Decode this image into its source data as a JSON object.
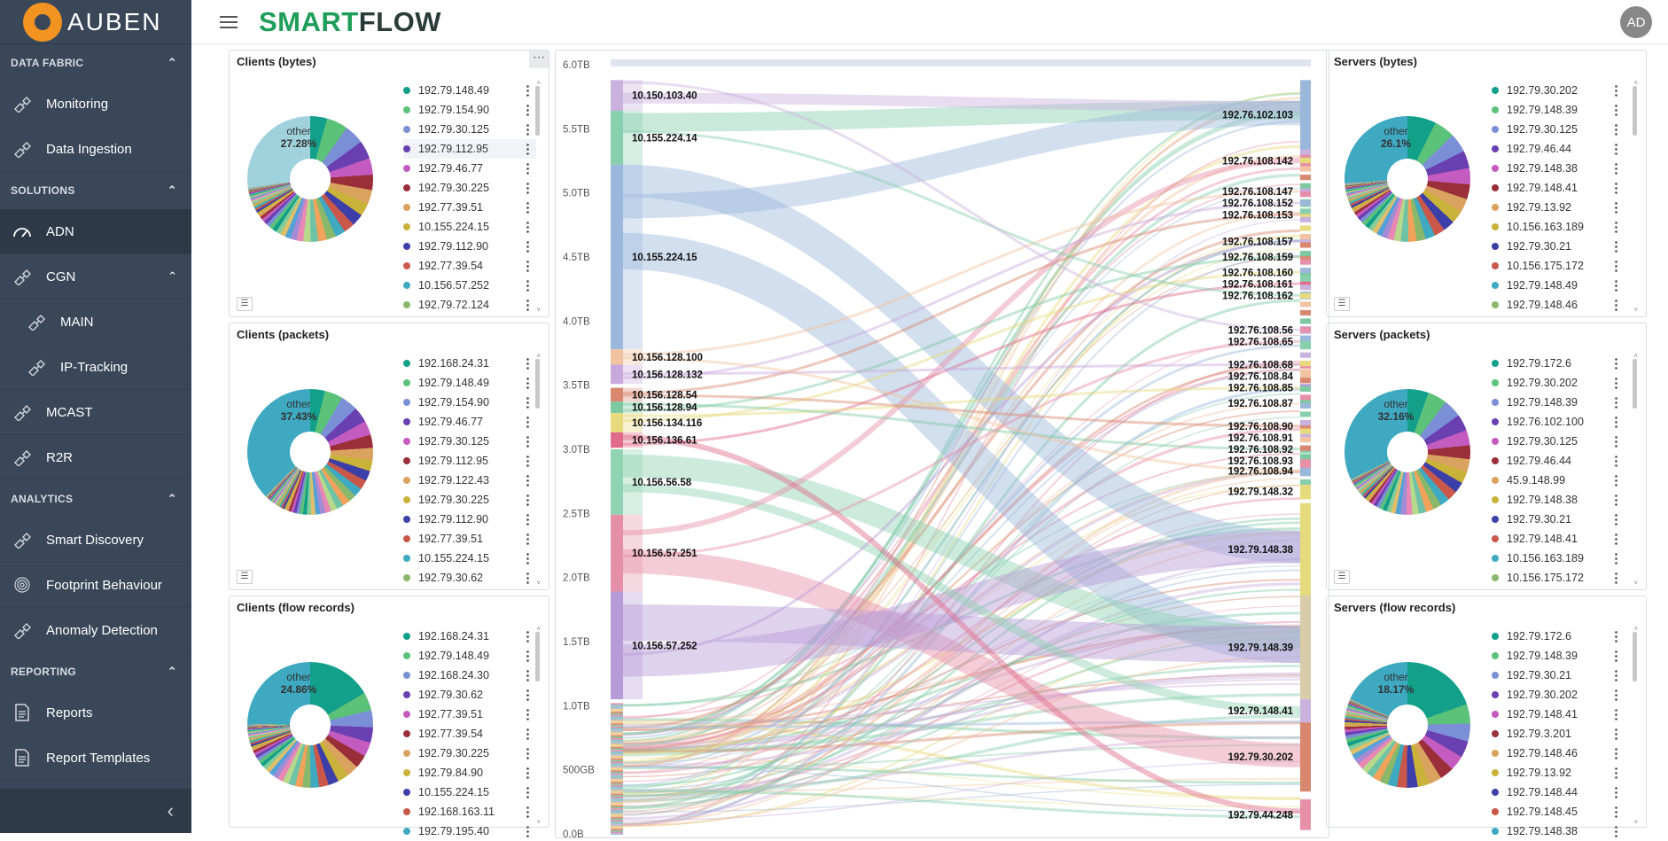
{
  "sidebar": {
    "logo": "AUBEN",
    "sections": [
      {
        "title": "DATA FABRIC",
        "items": [
          "Monitoring",
          "Data Ingestion"
        ]
      },
      {
        "title": "SOLUTIONS",
        "items": [
          "ADN",
          "CGN",
          "MAIN",
          "IP-Tracking",
          "MCAST",
          "R2R"
        ]
      },
      {
        "title": "ANALYTICS",
        "items": [
          "Smart Discovery",
          "Footprint Behaviour",
          "Anomaly Detection"
        ]
      },
      {
        "title": "REPORTING",
        "items": [
          "Reports",
          "Report Templates"
        ]
      }
    ]
  },
  "header": {
    "brand_a": "SMART",
    "brand_b": "FLOW",
    "avatar": "AD"
  },
  "panels": {
    "clients_bytes": {
      "title": "Clients (bytes)",
      "other_label": "other",
      "other_pct": "27.28%",
      "legend": [
        "192.79.148.49",
        "192.79.154.90",
        "192.79.30.125",
        "192.79.112.95",
        "192.79.46.77",
        "192.79.30.225",
        "192.77.39.51",
        "10.155.224.15",
        "192.79.112.90",
        "192.77.39.54",
        "10.156.57.252",
        "192.79.72.124"
      ]
    },
    "clients_packets": {
      "title": "Clients (packets)",
      "other_label": "other",
      "other_pct": "37.43%",
      "legend": [
        "192.168.24.31",
        "192.79.148.49",
        "192.79.154.90",
        "192.79.46.77",
        "192.79.30.125",
        "192.79.112.95",
        "192.79.122.43",
        "192.79.30.225",
        "192.79.112.90",
        "192.77.39.51",
        "10.155.224.15",
        "192.79.30.62"
      ]
    },
    "clients_flow": {
      "title": "Clients (flow records)",
      "other_label": "other",
      "other_pct": "24.86%",
      "legend": [
        "192.168.24.31",
        "192.79.148.49",
        "192.168.24.30",
        "192.79.30.62",
        "192.77.39.51",
        "192.77.39.54",
        "192.79.30.225",
        "192.79.84.90",
        "10.155.224.15",
        "192.168.163.11",
        "192.79.195.40"
      ]
    },
    "servers_bytes": {
      "title": "Servers (bytes)",
      "other_label": "other",
      "other_pct": "26.1%",
      "legend": [
        "192.79.30.202",
        "192.79.148.39",
        "192.79.30.125",
        "192.79.46.44",
        "192.79.148.38",
        "192.79.148.41",
        "192.79.13.92",
        "10.156.163.189",
        "192.79.30.21",
        "10.156.175.172",
        "192.79.148.49",
        "192.79.148.46"
      ]
    },
    "servers_packets": {
      "title": "Servers (packets)",
      "other_label": "other",
      "other_pct": "32.16%",
      "legend": [
        "192.79.172.6",
        "192.79.30.202",
        "192.79.148.39",
        "192.76.102.100",
        "192.79.30.125",
        "192.79.46.44",
        "45.9.148.99",
        "192.79.148.38",
        "192.79.30.21",
        "192.79.148.41",
        "10.156.163.189",
        "10.156.175.172"
      ]
    },
    "servers_flow": {
      "title": "Servers (flow records)",
      "other_label": "other",
      "other_pct": "18.17%",
      "legend": [
        "192.79.172.6",
        "192.79.148.39",
        "192.79.30.21",
        "192.79.30.202",
        "192.79.148.41",
        "192.79.3.201",
        "192.79.148.46",
        "192.79.13.92",
        "192.79.148.44",
        "192.79.148.45",
        "192.79.148.38"
      ]
    }
  },
  "legend_colors": [
    "#12a08a",
    "#5cc27a",
    "#7b8fd6",
    "#6a3fb0",
    "#c45cc0",
    "#9a2f3a",
    "#d9a25e",
    "#c9b23a",
    "#3d3fa8",
    "#c9584a",
    "#3ea9c0",
    "#8ab86a"
  ],
  "sankey": {
    "yticks": [
      "6.0TB",
      "5.5TB",
      "5.0TB",
      "4.5TB",
      "4.0TB",
      "3.5TB",
      "3.0TB",
      "2.5TB",
      "2.0TB",
      "1.5TB",
      "1.0TB",
      "500GB",
      "0.0B"
    ],
    "sources": [
      {
        "label": "10.150.103.40",
        "top": 0.02,
        "h": 0.04,
        "color": "#c9b2de"
      },
      {
        "label": "10.155.224.14",
        "top": 0.06,
        "h": 0.07,
        "color": "#88cfae"
      },
      {
        "label": "10.155.224.15",
        "top": 0.13,
        "h": 0.24,
        "color": "#9bb8dc"
      },
      {
        "label": "10.156.128.100",
        "top": 0.37,
        "h": 0.02,
        "color": "#f2c3a0"
      },
      {
        "label": "10.156.128.132",
        "top": 0.39,
        "h": 0.025,
        "color": "#c9a9dd"
      },
      {
        "label": "10.156.128.54",
        "top": 0.42,
        "h": 0.018,
        "color": "#d9876f"
      },
      {
        "label": "10.156.128.94",
        "top": 0.438,
        "h": 0.015,
        "color": "#7ec9a2"
      },
      {
        "label": "10.156.134.116",
        "top": 0.453,
        "h": 0.025,
        "color": "#e6da7c"
      },
      {
        "label": "10.156.136.61",
        "top": 0.478,
        "h": 0.02,
        "color": "#e06b8a"
      },
      {
        "label": "10.156.56.58",
        "top": 0.5,
        "h": 0.085,
        "color": "#8fd3b2"
      },
      {
        "label": "10.156.57.251",
        "top": 0.585,
        "h": 0.1,
        "color": "#e68fa8"
      },
      {
        "label": "10.156.57.252",
        "top": 0.685,
        "h": 0.14,
        "color": "#b79bd8"
      }
    ],
    "targets": [
      {
        "label": "192.76.102.103",
        "top": 0.02,
        "h": 0.09,
        "color": "#9bb8dc"
      },
      {
        "label": "192.76.108.142",
        "top": 0.115,
        "h": 0.02,
        "color": "#e68fa8"
      },
      {
        "label": "192.76.108.147",
        "top": 0.16,
        "h": 0.01,
        "color": "#c9a9dd"
      },
      {
        "label": "192.76.108.152",
        "top": 0.175,
        "h": 0.01,
        "color": "#88cfae"
      },
      {
        "label": "192.76.108.153",
        "top": 0.19,
        "h": 0.01,
        "color": "#e6da7c"
      },
      {
        "label": "192.76.108.157",
        "top": 0.225,
        "h": 0.01,
        "color": "#c9b2de"
      },
      {
        "label": "192.76.108.159",
        "top": 0.245,
        "h": 0.01,
        "color": "#d9876f"
      },
      {
        "label": "192.76.108.160",
        "top": 0.265,
        "h": 0.01,
        "color": "#7ec9a2"
      },
      {
        "label": "192.76.108.161",
        "top": 0.28,
        "h": 0.01,
        "color": "#e06b8a"
      },
      {
        "label": "192.76.108.162",
        "top": 0.295,
        "h": 0.01,
        "color": "#9bb8dc"
      },
      {
        "label": "192.76.108.56",
        "top": 0.34,
        "h": 0.01,
        "color": "#c9a9dd"
      },
      {
        "label": "192.76.108.65",
        "top": 0.355,
        "h": 0.01,
        "color": "#88cfae"
      },
      {
        "label": "192.76.108.68",
        "top": 0.385,
        "h": 0.01,
        "color": "#e68fa8"
      },
      {
        "label": "192.76.108.84",
        "top": 0.4,
        "h": 0.01,
        "color": "#f2c3a0"
      },
      {
        "label": "192.76.108.85",
        "top": 0.415,
        "h": 0.01,
        "color": "#b79bd8"
      },
      {
        "label": "192.76.108.87",
        "top": 0.435,
        "h": 0.01,
        "color": "#7ec9a2"
      },
      {
        "label": "192.76.108.90",
        "top": 0.465,
        "h": 0.01,
        "color": "#d9876f"
      },
      {
        "label": "192.76.108.91",
        "top": 0.48,
        "h": 0.01,
        "color": "#c9b2de"
      },
      {
        "label": "192.76.108.92",
        "top": 0.495,
        "h": 0.01,
        "color": "#88cfae"
      },
      {
        "label": "192.76.108.93",
        "top": 0.51,
        "h": 0.01,
        "color": "#e68fa8"
      },
      {
        "label": "192.76.108.94",
        "top": 0.523,
        "h": 0.01,
        "color": "#9bb8dc"
      },
      {
        "label": "192.79.148.32",
        "top": 0.545,
        "h": 0.02,
        "color": "#e6da7c"
      },
      {
        "label": "192.79.148.38",
        "top": 0.57,
        "h": 0.12,
        "color": "#e6da7c"
      },
      {
        "label": "192.79.148.39",
        "top": 0.69,
        "h": 0.135,
        "color": "#d8cda8"
      },
      {
        "label": "192.79.148.41",
        "top": 0.825,
        "h": 0.03,
        "color": "#c9b2de"
      },
      {
        "label": "192.79.30.202",
        "top": 0.855,
        "h": 0.09,
        "color": "#d9876f"
      },
      {
        "label": "192.79.44.248",
        "top": 0.955,
        "h": 0.04,
        "color": "#e68fa8"
      }
    ]
  }
}
